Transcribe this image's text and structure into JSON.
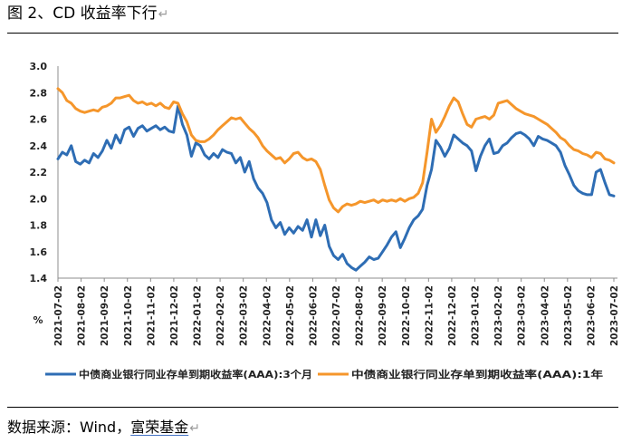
{
  "figure": {
    "title": "图 2、CD 收益率下行",
    "title_mark": "↵",
    "source_prefix": "数据来源：Wind，",
    "source_company": "富荣基金",
    "source_mark": "↵"
  },
  "chart_data": {
    "type": "line",
    "title": "图 2、CD 收益率下行",
    "ylabel": "%",
    "ylim": [
      1.4,
      3.0
    ],
    "yticks": [
      "1.4",
      "1.6",
      "1.8",
      "2.0",
      "2.2",
      "2.4",
      "2.6",
      "2.8",
      "3.0"
    ],
    "grid": false,
    "legend_position": "bottom",
    "x_ticks": [
      "2021-07-02",
      "2021-08-02",
      "2021-09-02",
      "2021-10-02",
      "2021-11-02",
      "2021-12-02",
      "2022-01-02",
      "2022-02-02",
      "2022-03-02",
      "2022-04-02",
      "2022-05-02",
      "2022-06-02",
      "2022-07-02",
      "2022-08-02",
      "2022-09-02",
      "2022-10-02",
      "2022-11-02",
      "2022-12-02",
      "2023-01-02",
      "2023-02-02",
      "2023-03-02",
      "2023-04-02",
      "2023-05-02",
      "2023-06-02",
      "2023-07-02"
    ],
    "series": [
      {
        "name": "中债商业银行同业存单到期收益率(AAA):3个月",
        "color": "#2e6db4",
        "values": [
          2.3,
          2.35,
          2.33,
          2.4,
          2.28,
          2.26,
          2.29,
          2.27,
          2.34,
          2.31,
          2.36,
          2.44,
          2.38,
          2.48,
          2.42,
          2.52,
          2.54,
          2.47,
          2.53,
          2.55,
          2.51,
          2.53,
          2.55,
          2.52,
          2.54,
          2.51,
          2.5,
          2.7,
          2.56,
          2.48,
          2.32,
          2.42,
          2.4,
          2.33,
          2.3,
          2.34,
          2.31,
          2.37,
          2.35,
          2.34,
          2.27,
          2.31,
          2.2,
          2.28,
          2.15,
          2.08,
          2.04,
          1.97,
          1.84,
          1.78,
          1.82,
          1.73,
          1.78,
          1.74,
          1.79,
          1.76,
          1.84,
          1.71,
          1.84,
          1.72,
          1.8,
          1.64,
          1.57,
          1.54,
          1.58,
          1.51,
          1.48,
          1.46,
          1.49,
          1.52,
          1.56,
          1.54,
          1.55,
          1.6,
          1.65,
          1.71,
          1.75,
          1.63,
          1.7,
          1.78,
          1.84,
          1.87,
          1.92,
          2.1,
          2.22,
          2.44,
          2.39,
          2.32,
          2.38,
          2.48,
          2.45,
          2.42,
          2.4,
          2.36,
          2.21,
          2.32,
          2.4,
          2.45,
          2.34,
          2.35,
          2.4,
          2.42,
          2.46,
          2.49,
          2.5,
          2.48,
          2.45,
          2.4,
          2.47,
          2.45,
          2.44,
          2.42,
          2.4,
          2.35,
          2.25,
          2.18,
          2.1,
          2.06,
          2.04,
          2.03,
          2.03,
          2.2,
          2.22,
          2.12,
          2.03,
          2.02
        ]
      },
      {
        "name": "中债商业银行同业存单到期收益率(AAA):1年",
        "color": "#f5962b",
        "values": [
          2.83,
          2.8,
          2.74,
          2.72,
          2.68,
          2.66,
          2.65,
          2.66,
          2.67,
          2.66,
          2.69,
          2.7,
          2.72,
          2.76,
          2.76,
          2.77,
          2.78,
          2.74,
          2.72,
          2.73,
          2.71,
          2.72,
          2.7,
          2.72,
          2.69,
          2.68,
          2.73,
          2.72,
          2.64,
          2.58,
          2.48,
          2.44,
          2.43,
          2.43,
          2.45,
          2.48,
          2.52,
          2.55,
          2.58,
          2.61,
          2.6,
          2.61,
          2.57,
          2.53,
          2.5,
          2.46,
          2.4,
          2.36,
          2.33,
          2.3,
          2.31,
          2.27,
          2.3,
          2.34,
          2.35,
          2.31,
          2.29,
          2.3,
          2.28,
          2.22,
          2.1,
          1.99,
          1.93,
          1.9,
          1.94,
          1.96,
          1.95,
          1.96,
          1.98,
          1.97,
          1.98,
          1.99,
          1.97,
          1.99,
          1.98,
          1.99,
          1.98,
          2.0,
          1.98,
          2.0,
          2.01,
          2.04,
          2.12,
          2.35,
          2.6,
          2.5,
          2.55,
          2.62,
          2.7,
          2.76,
          2.73,
          2.64,
          2.56,
          2.54,
          2.6,
          2.61,
          2.62,
          2.6,
          2.63,
          2.72,
          2.73,
          2.74,
          2.71,
          2.68,
          2.66,
          2.64,
          2.63,
          2.62,
          2.6,
          2.58,
          2.56,
          2.53,
          2.5,
          2.46,
          2.44,
          2.4,
          2.37,
          2.36,
          2.34,
          2.33,
          2.31,
          2.35,
          2.34,
          2.3,
          2.29,
          2.27
        ]
      }
    ]
  }
}
